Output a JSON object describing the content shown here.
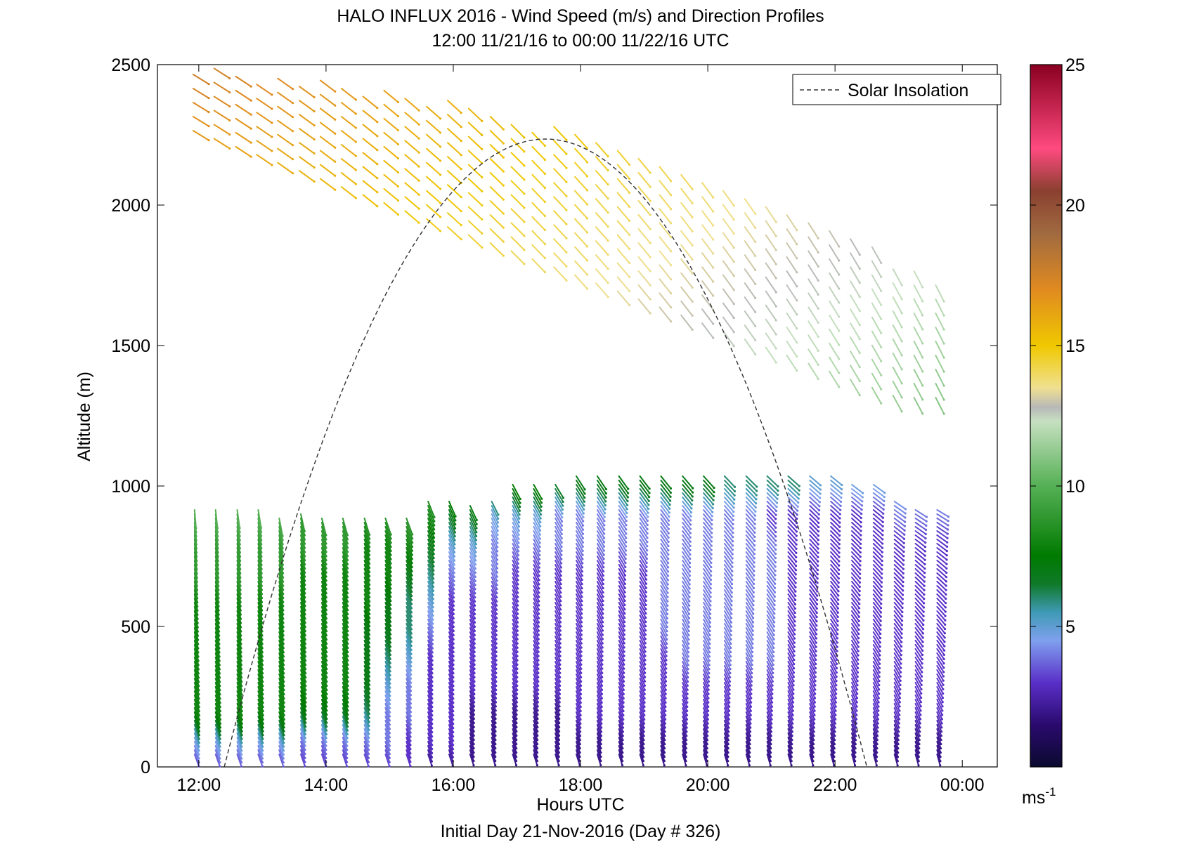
{
  "chart_data": {
    "type": "scatter",
    "subtype": "wind-barb profile",
    "title": "HALO INFLUX 2016 - Wind Speed (m/s) and Direction Profiles",
    "subtitle": "12:00 11/21/16 to 00:00 11/22/16  UTC",
    "xlabel": "Hours UTC",
    "footer": "Initial Day 21-Nov-2016 (Day # 326)",
    "ylabel": "Altitude (m)",
    "x_range_hours": [
      11.35,
      24.55
    ],
    "ylim": [
      0,
      2500
    ],
    "x_ticks": [
      12,
      14,
      16,
      18,
      20,
      22,
      24
    ],
    "x_tick_labels": [
      "12:00",
      "14:00",
      "16:00",
      "18:00",
      "20:00",
      "22:00",
      "00:00"
    ],
    "y_ticks": [
      0,
      500,
      1000,
      1500,
      2000,
      2500
    ],
    "y_tick_labels": [
      "0",
      "500",
      "1000",
      "1500",
      "2000",
      "2500"
    ],
    "legend": {
      "entries": [
        "Solar Insolation"
      ],
      "placement": "top-right"
    },
    "solar_insolation": {
      "style": "dashed",
      "color": "#333333",
      "rise_hour": 12.4,
      "set_hour": 22.5,
      "peak_hour": 17.45,
      "peak_altitude_equiv": 2235
    },
    "colorbar": {
      "label": "ms",
      "label_superscript": "-1",
      "range": [
        0,
        25
      ],
      "ticks": [
        5,
        10,
        15,
        20,
        25
      ],
      "tick_labels": [
        "5",
        "10",
        "15",
        "20",
        "25"
      ],
      "stops": [
        {
          "v": 0,
          "c": "#0b0a2e"
        },
        {
          "v": 1.5,
          "c": "#2a0a6e"
        },
        {
          "v": 3,
          "c": "#5a2fc8"
        },
        {
          "v": 4.5,
          "c": "#7fa0ee"
        },
        {
          "v": 5.5,
          "c": "#3f9ab6"
        },
        {
          "v": 6.5,
          "c": "#0f7a2a"
        },
        {
          "v": 7.5,
          "c": "#007a00"
        },
        {
          "v": 10,
          "c": "#55b055"
        },
        {
          "v": 12.3,
          "c": "#c6e0c0"
        },
        {
          "v": 12.8,
          "c": "#b8b8b8"
        },
        {
          "v": 13.5,
          "c": "#f0e090"
        },
        {
          "v": 15,
          "c": "#f0c800"
        },
        {
          "v": 17,
          "c": "#e08a20"
        },
        {
          "v": 19,
          "c": "#a06a40"
        },
        {
          "v": 20.5,
          "c": "#8a4030"
        },
        {
          "v": 22,
          "c": "#ff4a80"
        },
        {
          "v": 25,
          "c": "#8a0020"
        }
      ]
    },
    "wind_profiles": {
      "times_hours": [
        12.0,
        12.33,
        12.67,
        13.0,
        13.33,
        13.67,
        14.0,
        14.33,
        14.67,
        15.0,
        15.33,
        15.67,
        16.0,
        16.33,
        16.67,
        17.0,
        17.33,
        17.67,
        18.0,
        18.33,
        18.67,
        19.0,
        19.33,
        19.67,
        20.0,
        20.33,
        20.67,
        21.0,
        21.33,
        21.67,
        22.0,
        22.33,
        22.67,
        23.0,
        23.33,
        23.67
      ],
      "lower_layer": {
        "altitude_m": [
          0,
          100,
          200,
          300,
          400,
          500,
          600,
          700,
          800,
          900,
          1000
        ],
        "top_altitude_m_by_time": [
          900,
          900,
          900,
          900,
          880,
          890,
          880,
          880,
          880,
          880,
          880,
          940,
          940,
          920,
          940,
          1000,
          1000,
          1000,
          1020,
          1020,
          1020,
          1020,
          1020,
          1020,
          1020,
          1020,
          1020,
          1020,
          1020,
          1020,
          1020,
          1000,
          1000,
          940,
          900,
          900
        ],
        "speed_m_s": [
          [
            3,
            5,
            8,
            8,
            8,
            8,
            8,
            9,
            9,
            10,
            9
          ],
          [
            3,
            5,
            8,
            8,
            8,
            8,
            8,
            9,
            9,
            10,
            9
          ],
          [
            3,
            5,
            8,
            8,
            8,
            8,
            8,
            9,
            9,
            10,
            9
          ],
          [
            3,
            5,
            8,
            8,
            8,
            8,
            8,
            9,
            9,
            10,
            9
          ],
          [
            3,
            5,
            8,
            8,
            8,
            8,
            8,
            9,
            9,
            10,
            9
          ],
          [
            3,
            4,
            7,
            8,
            8,
            8,
            8,
            8,
            9,
            9,
            9
          ],
          [
            3,
            4,
            7,
            8,
            8,
            8,
            8,
            8,
            9,
            9,
            9
          ],
          [
            3,
            4,
            7,
            8,
            8,
            8,
            8,
            8,
            9,
            9,
            9
          ],
          [
            3,
            4,
            6,
            7,
            7,
            7,
            8,
            8,
            8,
            9,
            9
          ],
          [
            3,
            4,
            4,
            5,
            6,
            7,
            7,
            8,
            8,
            9,
            9
          ],
          [
            3,
            3,
            4,
            4,
            5,
            6,
            6,
            7,
            8,
            9,
            9
          ],
          [
            2,
            3,
            3,
            3,
            3,
            4,
            5,
            6,
            7,
            8,
            9
          ],
          [
            2,
            3,
            3,
            3,
            3,
            3,
            3,
            4,
            5,
            7,
            9
          ],
          [
            2,
            2,
            2,
            3,
            3,
            3,
            3,
            4,
            5,
            7,
            8
          ],
          [
            2,
            2,
            2,
            3,
            3,
            3,
            3,
            4,
            4,
            5,
            8
          ],
          [
            2,
            2,
            2,
            3,
            3,
            3,
            3,
            3,
            4,
            5,
            8
          ],
          [
            2,
            2,
            2,
            3,
            3,
            3,
            3,
            3,
            4,
            5,
            8
          ],
          [
            2,
            2,
            2,
            3,
            3,
            3,
            3,
            3,
            4,
            4,
            7
          ],
          [
            2,
            2,
            3,
            3,
            3,
            3,
            3,
            3,
            4,
            4,
            7
          ],
          [
            2,
            2,
            3,
            3,
            3,
            3,
            3,
            3,
            4,
            4,
            7
          ],
          [
            2,
            2,
            3,
            3,
            3,
            3,
            3,
            3,
            4,
            4,
            7
          ],
          [
            2,
            2,
            3,
            3,
            3,
            3,
            3,
            3,
            4,
            4,
            7
          ],
          [
            2,
            2,
            3,
            3,
            3,
            4,
            4,
            4,
            4,
            4,
            7
          ],
          [
            2,
            2,
            3,
            3,
            4,
            4,
            4,
            4,
            4,
            4,
            7
          ],
          [
            2,
            2,
            3,
            3,
            4,
            4,
            4,
            4,
            4,
            4,
            7
          ],
          [
            2,
            2,
            3,
            3,
            4,
            4,
            4,
            4,
            4,
            4,
            6
          ],
          [
            2,
            2,
            3,
            3,
            4,
            4,
            4,
            4,
            4,
            4,
            6
          ],
          [
            2,
            2,
            3,
            3,
            4,
            4,
            4,
            4,
            4,
            3,
            6
          ],
          [
            2,
            2,
            3,
            3,
            3,
            3,
            3,
            3,
            3,
            3,
            6
          ],
          [
            2,
            2,
            3,
            3,
            3,
            3,
            3,
            3,
            3,
            3,
            5
          ],
          [
            2,
            2,
            3,
            3,
            3,
            3,
            3,
            3,
            3,
            3,
            5
          ],
          [
            2,
            2,
            3,
            3,
            3,
            3,
            3,
            3,
            3,
            3,
            5
          ],
          [
            2,
            2,
            3,
            3,
            3,
            3,
            3,
            3,
            3,
            3,
            5
          ],
          [
            2,
            2,
            3,
            3,
            3,
            3,
            3,
            3,
            3,
            4,
            5
          ],
          [
            2,
            2,
            3,
            3,
            3,
            3,
            3,
            3,
            3,
            4,
            5
          ],
          [
            2,
            2,
            3,
            3,
            3,
            3,
            3,
            3,
            3,
            4,
            5
          ]
        ],
        "direction_note": "barbs point mostly downward (northerly component) early, turning to down-right (northwesterly) through the day"
      },
      "upper_layer": {
        "altitude_m": [
          1300,
          1400,
          1500,
          1600,
          1700,
          1800,
          1900,
          2000,
          2100,
          2200,
          2300,
          2400,
          2500
        ],
        "speed_note": "15-17 m/s orange/yellow early at 2200-2500 m, decreasing to 10-12 m/s green late in the period at 1300-2000 m"
      }
    }
  }
}
